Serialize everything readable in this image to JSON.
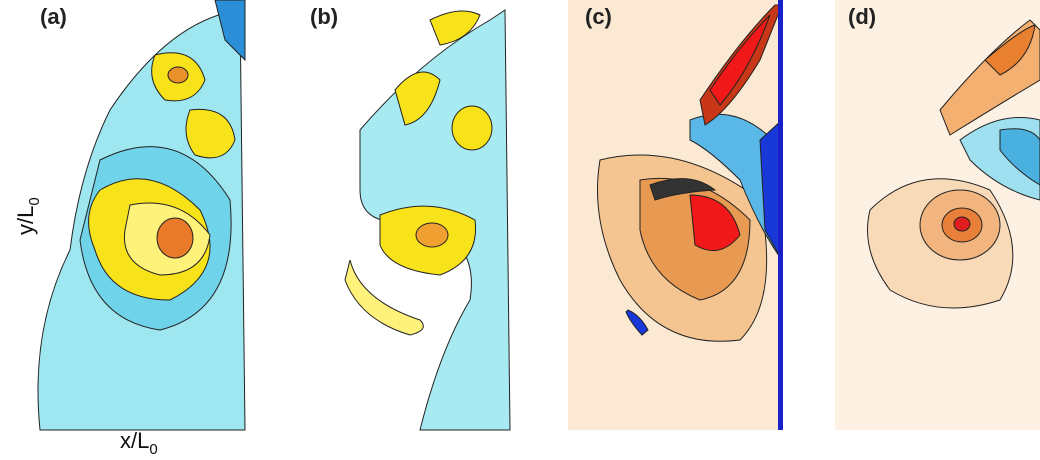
{
  "panels": [
    {
      "label": "(a)"
    },
    {
      "label": "(b)"
    },
    {
      "label": "(c)"
    },
    {
      "label": "(d)"
    }
  ],
  "y_axis_label": {
    "text": "y/L",
    "subscript": "0"
  },
  "x_axis_label": {
    "text": "x/L",
    "subscript": "0"
  }
}
